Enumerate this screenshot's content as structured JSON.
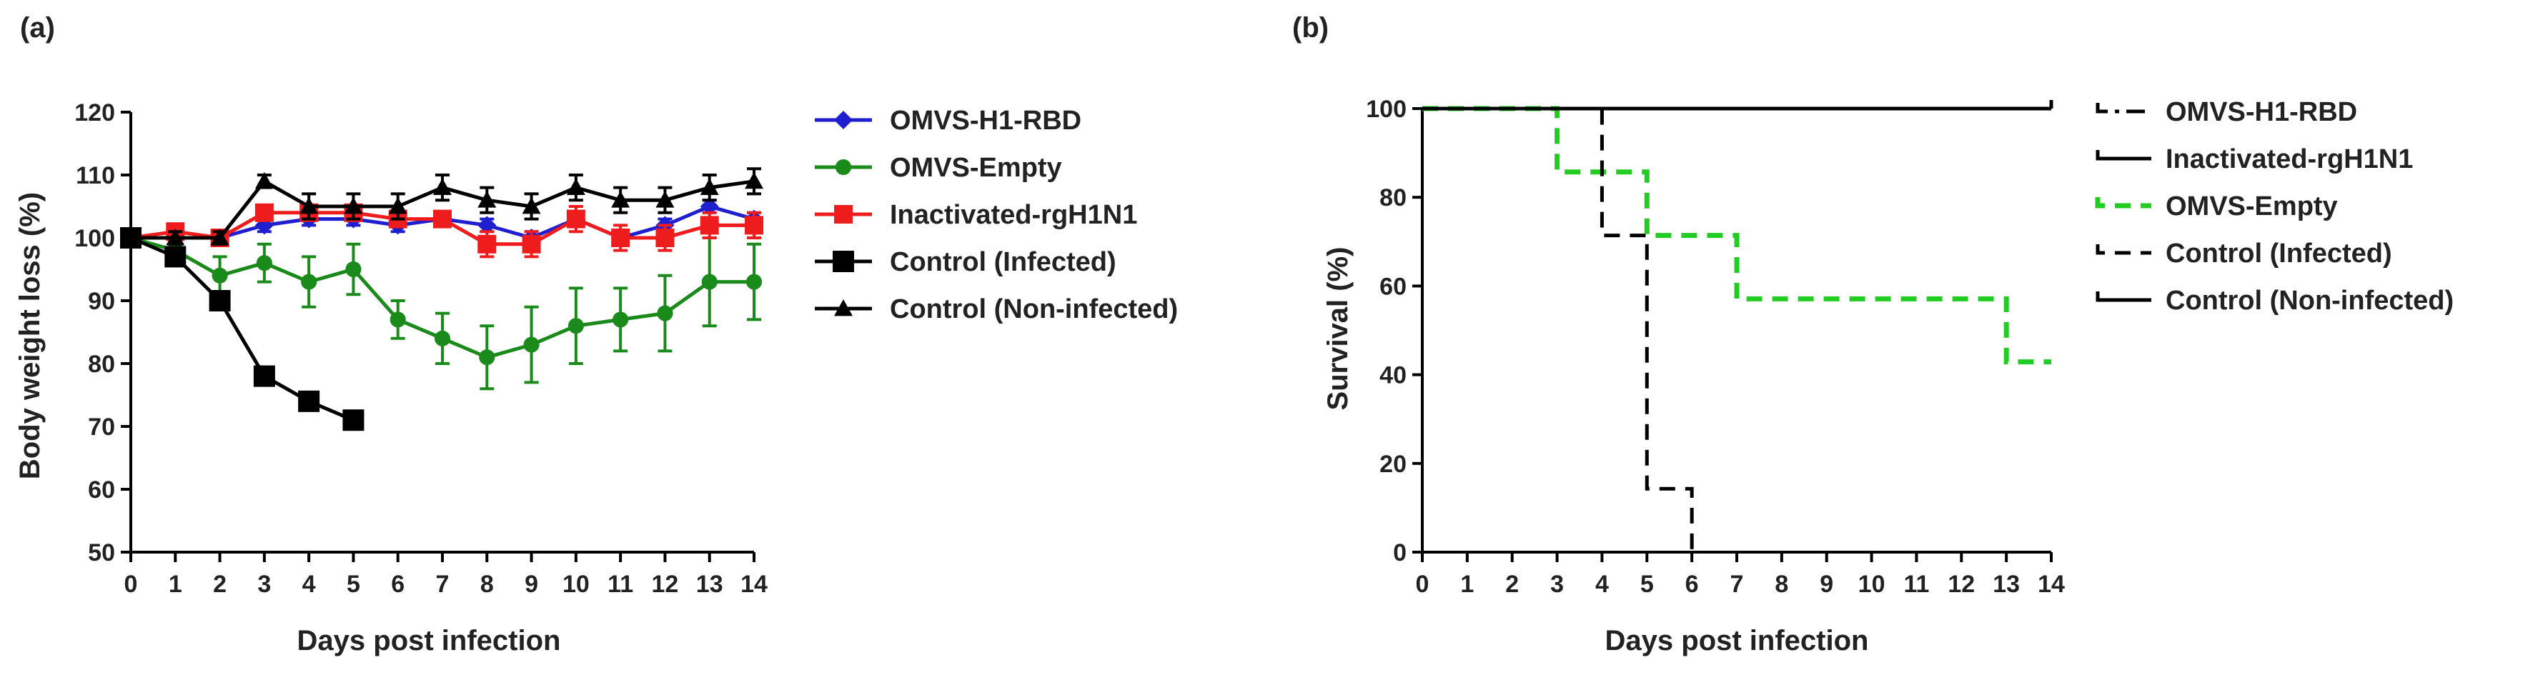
{
  "chart_data": [
    {
      "panel": "(a)",
      "type": "line",
      "xlabel": "Days post infection",
      "ylabel": "Body weight loss (%)",
      "xlim": [
        0,
        14
      ],
      "ylim": [
        50,
        120
      ],
      "xticks": [
        0,
        1,
        2,
        3,
        4,
        5,
        6,
        7,
        8,
        9,
        10,
        11,
        12,
        13,
        14
      ],
      "yticks": [
        50,
        60,
        70,
        80,
        90,
        100,
        110,
        120
      ],
      "legend_position": "right",
      "series": [
        {
          "name": "OMVS-H1-RBD",
          "color": "#1f1fd0",
          "marker": "diamond",
          "x": [
            0,
            1,
            2,
            3,
            4,
            5,
            6,
            7,
            8,
            9,
            10,
            11,
            12,
            13,
            14
          ],
          "y": [
            100,
            100,
            100,
            102,
            103,
            103,
            102,
            103,
            102,
            100,
            103,
            100,
            102,
            105,
            103
          ],
          "err": [
            0,
            1,
            1,
            1,
            1,
            1,
            1,
            1,
            1,
            1,
            1,
            1,
            1,
            1,
            1
          ]
        },
        {
          "name": "OMVS-Empty",
          "color": "#1a8a1a",
          "marker": "circle",
          "x": [
            0,
            1,
            2,
            3,
            4,
            5,
            6,
            7,
            8,
            9,
            10,
            11,
            12,
            13,
            14
          ],
          "y": [
            100,
            98,
            94,
            96,
            93,
            95,
            87,
            84,
            81,
            83,
            86,
            87,
            88,
            93,
            93
          ],
          "err": [
            0,
            2,
            3,
            3,
            4,
            4,
            3,
            4,
            5,
            6,
            6,
            5,
            6,
            7,
            6
          ]
        },
        {
          "name": "Inactivated-rgH1N1",
          "color": "#ee1c1c",
          "marker": "square",
          "x": [
            0,
            1,
            2,
            3,
            4,
            5,
            6,
            7,
            8,
            9,
            10,
            11,
            12,
            13,
            14
          ],
          "y": [
            100,
            101,
            100,
            104,
            104,
            104,
            103,
            103,
            99,
            99,
            103,
            100,
            100,
            102,
            102
          ],
          "err": [
            0,
            1,
            1,
            1,
            1,
            1,
            1,
            1,
            2,
            2,
            2,
            2,
            2,
            2,
            2
          ]
        },
        {
          "name": "Control (Infected)",
          "color": "#000000",
          "marker": "square",
          "x": [
            0,
            1,
            2,
            3,
            4,
            5
          ],
          "y": [
            100,
            97,
            90,
            78,
            74,
            71
          ],
          "err": [
            0,
            1,
            1,
            1,
            1,
            1
          ]
        },
        {
          "name": "Control (Non-infected)",
          "color": "#000000",
          "marker": "triangle",
          "x": [
            0,
            1,
            2,
            3,
            4,
            5,
            6,
            7,
            8,
            9,
            10,
            11,
            12,
            13,
            14
          ],
          "y": [
            100,
            100,
            100,
            109,
            105,
            105,
            105,
            108,
            106,
            105,
            108,
            106,
            106,
            108,
            109
          ],
          "err": [
            0,
            1,
            1,
            1,
            2,
            2,
            2,
            2,
            2,
            2,
            2,
            2,
            2,
            2,
            2
          ]
        }
      ]
    },
    {
      "panel": "(b)",
      "type": "line",
      "step": true,
      "xlabel": "Days post infection",
      "ylabel": "Survival (%)",
      "xlim": [
        0,
        14
      ],
      "ylim": [
        0,
        100
      ],
      "xticks": [
        0,
        1,
        2,
        3,
        4,
        5,
        6,
        7,
        8,
        9,
        10,
        11,
        12,
        13,
        14
      ],
      "yticks": [
        0,
        20,
        40,
        60,
        80,
        100
      ],
      "legend_position": "right",
      "series": [
        {
          "name": "OMVS-H1-RBD",
          "color": "#000000",
          "style": "dash-dot",
          "x": [
            0,
            14
          ],
          "y": [
            100,
            100
          ]
        },
        {
          "name": "Inactivated-rgH1N1",
          "color": "#000000",
          "style": "solid",
          "x": [
            0,
            14
          ],
          "y": [
            100,
            100
          ]
        },
        {
          "name": "OMVS-Empty",
          "color": "#22cc22",
          "style": "dashed",
          "x": [
            0,
            3,
            5,
            7,
            13,
            14
          ],
          "y": [
            100,
            85.7,
            71.4,
            57.1,
            42.9,
            42.9
          ]
        },
        {
          "name": "Control (Infected)",
          "color": "#000000",
          "style": "dashed",
          "x": [
            0,
            4,
            5,
            6
          ],
          "y": [
            100,
            71.4,
            14.3,
            0
          ]
        },
        {
          "name": "Control (Non-infected)",
          "color": "#000000",
          "style": "solid",
          "x": [
            0,
            14
          ],
          "y": [
            100,
            100
          ]
        }
      ]
    }
  ]
}
